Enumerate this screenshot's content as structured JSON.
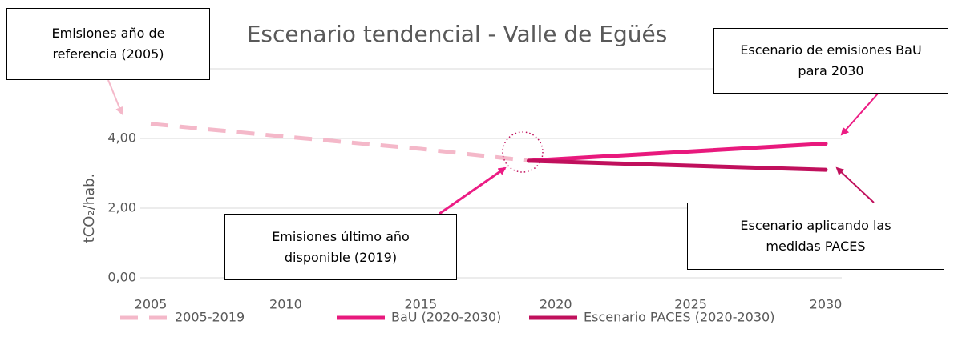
{
  "chart_data": {
    "type": "line",
    "title": "Escenario tendencial - Valle de Egüés",
    "y_label": "tCO₂/hab.",
    "xlim": [
      2005,
      2030
    ],
    "xticks": [
      2005,
      2010,
      2015,
      2020,
      2025,
      2030
    ],
    "ylim": [
      0,
      6
    ],
    "yticks": [
      {
        "value": 0,
        "label": "0,00"
      },
      {
        "value": 2,
        "label": "2,00"
      },
      {
        "value": 4,
        "label": "4,00"
      }
    ],
    "grid": true,
    "legend": "bottom",
    "series": [
      {
        "name": "2005-2019",
        "color": "#f4b8c9",
        "dashed": true,
        "x": [
          2005,
          2010,
          2015,
          2019
        ],
        "values": [
          4.42,
          4.05,
          3.7,
          3.36
        ]
      },
      {
        "name": "BaU (2020-2030)",
        "color": "#e8197d",
        "x": [
          2019,
          2030
        ],
        "values": [
          3.36,
          3.85
        ]
      },
      {
        "name": "Escenario PACES (2020-2030)",
        "color": "#c0105c",
        "x": [
          2019,
          2030
        ],
        "values": [
          3.36,
          3.1
        ]
      }
    ],
    "annotations": [
      {
        "text": "Emisiones año de referencia (2005)"
      },
      {
        "text": "Escenario de emisiones BaU para 2030"
      },
      {
        "text": "Emisiones último año disponible (2019)"
      },
      {
        "text": "Escenario aplicando las medidas PACES"
      }
    ]
  }
}
